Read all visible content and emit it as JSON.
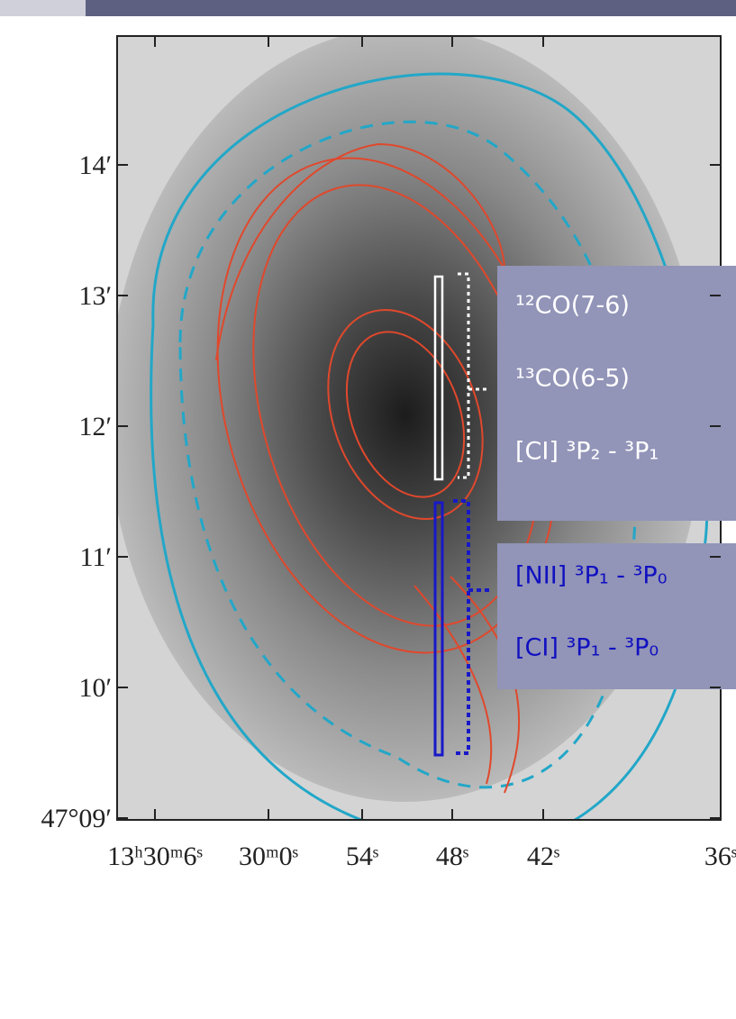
{
  "y_axis": {
    "labels": [
      "14′",
      "13′",
      "12′",
      "11′",
      "10′",
      "47°09′"
    ]
  },
  "x_axis": {
    "labels": [
      "13ʰ30ᵐ6ˢ",
      "30ᵐ0ˢ",
      "54ˢ",
      "48ˢ",
      "42ˢ",
      "36ˢ"
    ]
  },
  "upper_box": {
    "lines": [
      "¹²CO(7-6)",
      "¹³CO(6-5)",
      "[CI] ³P₂ - ³P₁"
    ]
  },
  "lower_box": {
    "lines": [
      "[NII] ³P₁ - ³P₀",
      "[CI] ³P₁ - ³P₀"
    ]
  }
}
